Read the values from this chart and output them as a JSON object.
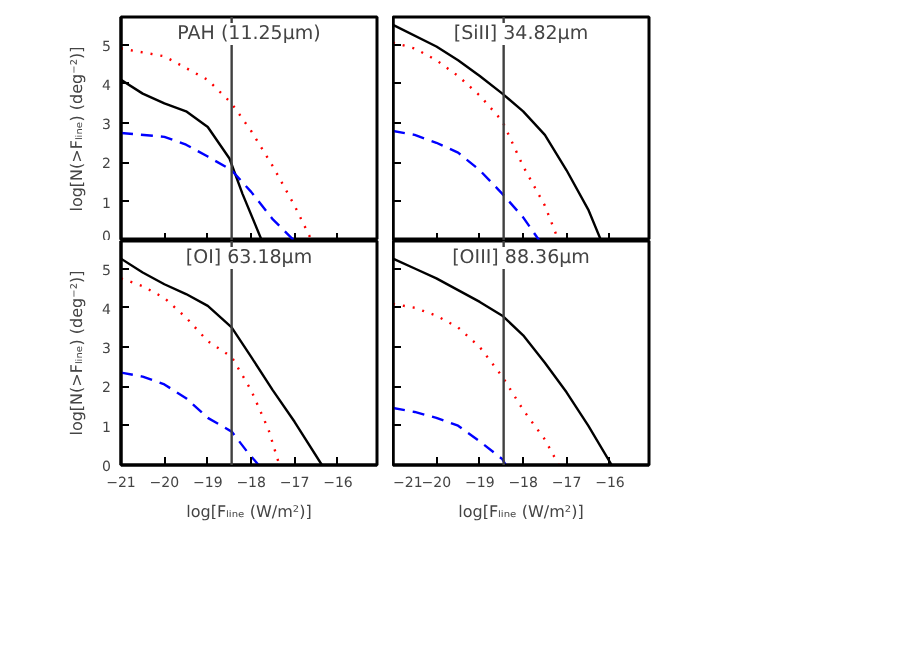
{
  "chart_data": [
    {
      "type": "line",
      "title": "PAH (11.25μm)",
      "ylabel": "log[N(>Fₗᵢₙₑ) (deg⁻²)]",
      "xlim": [
        -21,
        -15.1
      ],
      "ylim": [
        0,
        5.7
      ],
      "xticks": [
        -21,
        -20,
        -19,
        -18,
        -17,
        -16
      ],
      "yticks": [
        0,
        1,
        2,
        3,
        4,
        5
      ],
      "tick_labels": "y",
      "grid": false,
      "ref_lines": [
        {
          "axis": "x",
          "value": -18.45,
          "color": "#404040"
        }
      ],
      "series": [
        {
          "color": "#000000",
          "line_style": "solid",
          "x": [
            -21,
            -20.5,
            -20,
            -19.5,
            -19,
            -18.5,
            -18.2,
            -17.75
          ],
          "values": [
            4.1,
            3.75,
            3.5,
            3.3,
            2.9,
            2.1,
            1.2,
            0
          ]
        },
        {
          "color": "#ff0000",
          "line_style": "dotted",
          "x": [
            -21,
            -20,
            -19,
            -18.45,
            -18,
            -17.5,
            -17,
            -16.6
          ],
          "values": [
            4.9,
            4.7,
            4.1,
            3.5,
            2.8,
            1.9,
            0.9,
            0
          ]
        },
        {
          "color": "#0000ff",
          "line_style": "dashed",
          "x": [
            -21,
            -20,
            -19.5,
            -19,
            -18.45,
            -18,
            -17.5,
            -17.0
          ],
          "values": [
            2.75,
            2.65,
            2.45,
            2.15,
            1.8,
            1.25,
            0.55,
            0
          ]
        }
      ]
    },
    {
      "type": "line",
      "title": "[SiII] 34.82μm",
      "xlim": [
        -21,
        -15.1
      ],
      "ylim": [
        0,
        5.7
      ],
      "xticks": [
        -21,
        -20,
        -19,
        -18,
        -17,
        -16
      ],
      "yticks": [
        0,
        1,
        2,
        3,
        4,
        5
      ],
      "tick_labels": false,
      "grid": false,
      "ref_lines": [
        {
          "axis": "x",
          "value": -18.45,
          "color": "#404040"
        }
      ],
      "series": [
        {
          "color": "#000000",
          "line_style": "solid",
          "x": [
            -21,
            -20,
            -19.5,
            -19,
            -18.48,
            -18,
            -17.5,
            -17,
            -16.5,
            -16.2
          ],
          "values": [
            5.5,
            4.95,
            4.6,
            4.2,
            3.75,
            3.3,
            2.7,
            1.8,
            0.8,
            0
          ]
        },
        {
          "color": "#ff0000",
          "line_style": "dotted",
          "x": [
            -21,
            -20.5,
            -20,
            -19.5,
            -19,
            -18.48,
            -18,
            -17.5,
            -17.18
          ],
          "values": [
            5.05,
            4.9,
            4.6,
            4.2,
            3.7,
            3.05,
            1.9,
            0.9,
            0
          ]
        },
        {
          "color": "#0000ff",
          "line_style": "dashed",
          "x": [
            -21,
            -20.5,
            -20,
            -19.5,
            -19,
            -18.48,
            -18,
            -17.62
          ],
          "values": [
            2.8,
            2.7,
            2.5,
            2.25,
            1.8,
            1.2,
            0.6,
            0
          ]
        }
      ]
    },
    {
      "type": "line",
      "title": "[OI] 63.18μm",
      "xlabel": "log[Fₗᵢₙₑ (W/m²)]",
      "ylabel": "log[N(>Fₗᵢₙₑ) (deg⁻²)]",
      "xlim": [
        -21,
        -15.1
      ],
      "ylim": [
        0,
        5.7
      ],
      "xticks": [
        -21,
        -20,
        -19,
        -18,
        -17,
        -16
      ],
      "yticks": [
        0,
        1,
        2,
        3,
        4,
        5
      ],
      "grid": false,
      "ref_lines": [
        {
          "axis": "x",
          "value": -18.45,
          "color": "#404040"
        }
      ],
      "series": [
        {
          "color": "#000000",
          "line_style": "solid",
          "x": [
            -21,
            -20.5,
            -20,
            -19.5,
            -19,
            -18.45,
            -18,
            -17.5,
            -17,
            -16.37
          ],
          "values": [
            5.25,
            4.9,
            4.6,
            4.35,
            4.05,
            3.5,
            2.75,
            1.9,
            1.1,
            0
          ]
        },
        {
          "color": "#ff0000",
          "line_style": "dotted",
          "x": [
            -21,
            -20.5,
            -20,
            -19.5,
            -19,
            -18.45,
            -18,
            -17.6,
            -17.35
          ],
          "values": [
            4.75,
            4.55,
            4.25,
            3.75,
            3.15,
            2.75,
            1.9,
            0.9,
            0
          ]
        },
        {
          "color": "#0000ff",
          "line_style": "dashed",
          "x": [
            -21,
            -20.5,
            -20,
            -19.5,
            -19,
            -18.45,
            -18.1,
            -17.83
          ],
          "values": [
            2.35,
            2.25,
            2.05,
            1.7,
            1.2,
            0.85,
            0.35,
            0
          ]
        }
      ]
    },
    {
      "type": "line",
      "title": "[OIII] 88.36μm",
      "xlabel": "log[Fₗᵢₙₑ (W/m²)]",
      "xlim": [
        -21,
        -15.1
      ],
      "ylim": [
        0,
        5.7
      ],
      "xticks": [
        -21,
        -20,
        -19,
        -18,
        -17,
        -16
      ],
      "yticks": [
        0,
        1,
        2,
        3,
        4,
        5
      ],
      "tick_labels": "x",
      "grid": false,
      "ref_lines": [
        {
          "axis": "x",
          "value": -18.45,
          "color": "#404040"
        }
      ],
      "series": [
        {
          "color": "#000000",
          "line_style": "solid",
          "x": [
            -21,
            -20.5,
            -20,
            -19.5,
            -19,
            -18.48,
            -18,
            -17.5,
            -17,
            -16.5,
            -15.96
          ],
          "values": [
            5.25,
            5.0,
            4.75,
            4.45,
            4.15,
            3.8,
            3.3,
            2.6,
            1.85,
            1.0,
            0
          ]
        },
        {
          "color": "#ff0000",
          "line_style": "dotted",
          "x": [
            -21,
            -20.5,
            -20,
            -19.5,
            -19,
            -18.48,
            -18,
            -17.5,
            -17.18
          ],
          "values": [
            4.1,
            4.0,
            3.8,
            3.5,
            3.0,
            2.25,
            1.4,
            0.65,
            0
          ]
        },
        {
          "color": "#0000ff",
          "line_style": "dashed",
          "x": [
            -21,
            -20.5,
            -20,
            -19.5,
            -19,
            -18.48,
            -18.4
          ],
          "values": [
            1.45,
            1.35,
            1.2,
            1.0,
            0.6,
            0.15,
            0
          ]
        }
      ]
    }
  ]
}
